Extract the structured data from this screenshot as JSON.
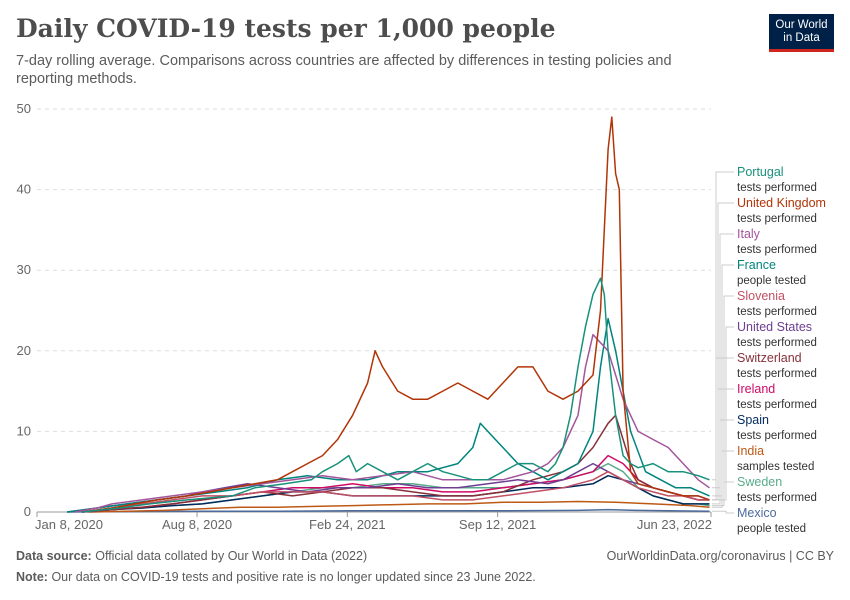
{
  "title": "Daily COVID-19 tests per 1,000 people",
  "subtitle": "7-day rolling average. Comparisons across countries are affected by differences in testing policies and reporting methods.",
  "logo": {
    "line1": "Our World",
    "line2": "in Data"
  },
  "footer": {
    "source_label": "Data source:",
    "source_text": "Official data collated by Our World in Data (2022)",
    "note_label": "Note:",
    "note_text": "Our data on COVID-19 tests and positive rate is no longer updated since 23 June 2022.",
    "link": "OurWorldinData.org/coronavirus | CC BY"
  },
  "chart_data": {
    "type": "line",
    "title": "Daily COVID-19 tests per 1,000 people",
    "xlabel": "",
    "ylabel": "",
    "ylim": [
      0,
      50
    ],
    "yticks": [
      0,
      10,
      20,
      30,
      40,
      50
    ],
    "xlim": [
      0,
      897
    ],
    "xticks": [
      {
        "t": 0,
        "label": "Jan 8, 2020"
      },
      {
        "t": 213,
        "label": "Aug 8, 2020"
      },
      {
        "t": 413,
        "label": "Feb 24, 2021"
      },
      {
        "t": 613,
        "label": "Sep 12, 2021"
      },
      {
        "t": 897,
        "label": "Jun 23, 2022"
      }
    ],
    "series": [
      {
        "name": "Portugal",
        "label": "tests performed",
        "color": "#18917b",
        "t": [
          60,
          110,
          150,
          200,
          260,
          290,
          330,
          365,
          380,
          400,
          415,
          425,
          440,
          460,
          480,
          500,
          520,
          540,
          560,
          580,
          600,
          620,
          640,
          650,
          660,
          680,
          690,
          700,
          710,
          720,
          730,
          740,
          750,
          755,
          760,
          770,
          780,
          790,
          800,
          820,
          840,
          860,
          880,
          895
        ],
        "v": [
          0,
          0.5,
          1,
          1.5,
          2,
          3,
          3.5,
          4,
          5,
          6,
          7,
          5,
          6,
          5,
          4,
          5,
          6,
          5,
          4.5,
          4,
          4,
          5,
          6,
          6,
          6,
          5,
          6,
          8,
          12,
          18,
          23,
          27,
          29,
          27,
          20,
          12,
          7,
          6,
          5.5,
          6,
          5,
          5,
          4.5,
          4
        ]
      },
      {
        "name": "United Kingdom",
        "label": "tests performed",
        "color": "#b13507",
        "t": [
          60,
          100,
          130,
          160,
          200,
          230,
          260,
          290,
          320,
          340,
          360,
          380,
          400,
          420,
          440,
          450,
          460,
          480,
          500,
          520,
          540,
          560,
          580,
          600,
          620,
          640,
          660,
          680,
          700,
          720,
          740,
          750,
          755,
          760,
          765,
          770,
          775,
          780,
          790,
          800,
          820,
          840,
          860,
          880,
          895
        ],
        "v": [
          0,
          0.5,
          1,
          1.5,
          2,
          2.5,
          3,
          3.5,
          4,
          5,
          6,
          7,
          9,
          12,
          16,
          20,
          18,
          15,
          14,
          14,
          15,
          16,
          15,
          14,
          16,
          18,
          18,
          15,
          14,
          15,
          17,
          25,
          35,
          45,
          49,
          42,
          40,
          15,
          5,
          3.5,
          3,
          2.5,
          2,
          2,
          1.5
        ]
      },
      {
        "name": "Italy",
        "label": "tests performed",
        "color": "#a2559c",
        "t": [
          50,
          80,
          100,
          140,
          180,
          220,
          260,
          300,
          340,
          380,
          420,
          460,
          500,
          540,
          580,
          620,
          660,
          680,
          700,
          720,
          730,
          740,
          760,
          780,
          800,
          820,
          840,
          860,
          880,
          895
        ],
        "v": [
          0,
          0.5,
          1,
          1.5,
          2,
          2.5,
          3,
          3.5,
          4,
          4.5,
          4,
          4.5,
          5,
          4,
          4,
          4,
          5,
          6,
          8,
          12,
          18,
          22,
          20,
          14,
          10,
          9,
          8,
          6,
          4,
          3
        ]
      },
      {
        "name": "France",
        "label": "people tested",
        "color": "#00847e",
        "t": [
          40,
          80,
          120,
          160,
          200,
          240,
          280,
          320,
          360,
          400,
          440,
          480,
          520,
          560,
          580,
          590,
          600,
          620,
          640,
          660,
          680,
          700,
          720,
          740,
          750,
          760,
          770,
          790,
          810,
          830,
          850,
          870,
          895
        ],
        "v": [
          0,
          0.5,
          1,
          1.5,
          2,
          2.5,
          3,
          4,
          4.5,
          4,
          4,
          5,
          5,
          6,
          8,
          11,
          10,
          8,
          6,
          5,
          4,
          5,
          6,
          10,
          18,
          24,
          20,
          10,
          5,
          4,
          3,
          3,
          2
        ]
      },
      {
        "name": "Slovenia",
        "label": "tests performed",
        "color": "#c15065",
        "t": [
          60,
          100,
          140,
          180,
          220,
          260,
          300,
          340,
          380,
          420,
          460,
          500,
          540,
          580,
          620,
          660,
          700,
          720,
          740,
          760,
          780,
          800,
          820,
          840,
          860,
          880,
          895
        ],
        "v": [
          0,
          0.5,
          1,
          1.5,
          2,
          2,
          2.5,
          2.5,
          2.5,
          2,
          2,
          2,
          1.5,
          1.5,
          2,
          2.5,
          3,
          3.5,
          4,
          5,
          4,
          3,
          2.5,
          2,
          2,
          1.5,
          1.5
        ]
      },
      {
        "name": "United States",
        "label": "tests performed",
        "color": "#6d3e91",
        "t": [
          40,
          80,
          120,
          160,
          200,
          220,
          250,
          280,
          320,
          360,
          400,
          440,
          480,
          520,
          560,
          600,
          640,
          680,
          700,
          720,
          740,
          760,
          780,
          800,
          820,
          840,
          860,
          880,
          895
        ],
        "v": [
          0,
          0.5,
          1,
          1.5,
          2,
          2.5,
          3,
          3.5,
          3,
          2.5,
          3,
          3,
          3.5,
          3,
          3,
          3.5,
          4,
          3.5,
          4,
          5,
          6,
          5,
          4,
          3.5,
          3,
          2.5,
          2,
          2,
          1.5
        ]
      },
      {
        "name": "Switzerland",
        "label": "tests performed",
        "color": "#883039",
        "t": [
          60,
          100,
          140,
          180,
          220,
          260,
          300,
          340,
          380,
          420,
          460,
          500,
          540,
          580,
          620,
          660,
          700,
          720,
          740,
          760,
          770,
          780,
          790,
          800,
          820,
          840,
          860,
          880,
          895
        ],
        "v": [
          0,
          0.3,
          0.6,
          1,
          1.5,
          2,
          2.5,
          2,
          2.5,
          3,
          3,
          2.5,
          2,
          2,
          2.5,
          4,
          5,
          6,
          8,
          11,
          12,
          9,
          6,
          4,
          3,
          2.5,
          2,
          1.5,
          1.5
        ]
      },
      {
        "name": "Ireland",
        "label": "tests performed",
        "color": "#cf0a66",
        "t": [
          60,
          100,
          140,
          180,
          220,
          260,
          300,
          340,
          380,
          420,
          460,
          500,
          540,
          580,
          620,
          660,
          700,
          740,
          760,
          780,
          800,
          820,
          840,
          860,
          880,
          895
        ],
        "v": [
          0,
          0.3,
          0.6,
          1,
          1.5,
          2,
          2.5,
          3,
          3,
          3.5,
          3,
          3,
          2.5,
          2.5,
          3,
          3.5,
          4,
          5,
          7,
          6,
          4,
          3,
          2.5,
          2,
          1.5,
          1.5
        ]
      },
      {
        "name": "Spain",
        "label": "tests performed",
        "color": "#00295b",
        "t": [
          60,
          100,
          140,
          180,
          220,
          260,
          300,
          340,
          380,
          420,
          460,
          500,
          540,
          580,
          620,
          660,
          700,
          740,
          760,
          780,
          800,
          820,
          840,
          860,
          880,
          895
        ],
        "v": [
          0,
          0.3,
          0.5,
          0.8,
          1,
          1.5,
          2,
          2.5,
          2.5,
          2,
          2,
          2,
          2,
          2,
          2.5,
          3,
          3,
          3.5,
          4.5,
          4,
          3,
          2,
          1.5,
          1,
          1,
          1
        ]
      },
      {
        "name": "India",
        "label": "samples tested",
        "color": "#be5915",
        "t": [
          70,
          120,
          170,
          220,
          270,
          320,
          370,
          420,
          470,
          520,
          570,
          620,
          670,
          720,
          770,
          820,
          870,
          895
        ],
        "v": [
          0,
          0.1,
          0.2,
          0.4,
          0.6,
          0.6,
          0.7,
          0.8,
          0.9,
          1,
          1,
          1.2,
          1.2,
          1.3,
          1.2,
          1,
          0.8,
          0.6
        ]
      },
      {
        "name": "Sweden",
        "label": "tests performed",
        "color": "#58ac8c",
        "t": [
          60,
          100,
          140,
          180,
          220,
          260,
          300,
          340,
          380,
          420,
          460,
          500,
          540,
          580,
          620,
          660,
          700,
          740,
          760,
          780,
          800,
          820,
          840,
          860,
          880,
          895
        ],
        "v": [
          0,
          0.3,
          0.5,
          0.8,
          1,
          1.5,
          2,
          2.5,
          3,
          3,
          3.5,
          3.5,
          3,
          3,
          3,
          3.5,
          4,
          5,
          6,
          5,
          3,
          2,
          1.5,
          1,
          1,
          0.8
        ]
      },
      {
        "name": "Mexico",
        "label": "people tested",
        "color": "#4c6a9c",
        "t": [
          40,
          120,
          220,
          320,
          420,
          520,
          620,
          720,
          760,
          800,
          840,
          895
        ],
        "v": [
          0,
          0.05,
          0.1,
          0.1,
          0.15,
          0.15,
          0.15,
          0.2,
          0.3,
          0.2,
          0.15,
          0.1
        ]
      }
    ]
  }
}
